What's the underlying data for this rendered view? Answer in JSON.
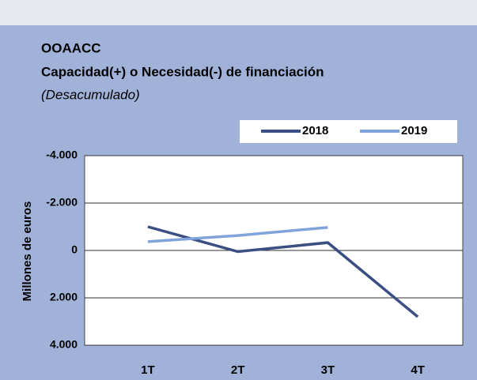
{
  "chart_data": {
    "type": "line",
    "title": "OOAACC",
    "subtitle": "Capacidad(+) o Necesidad(-) de financiación",
    "note": "(Desacumulado)",
    "y_label": "Millones de euros",
    "categories": [
      "1T",
      "2T",
      "3T",
      "4T"
    ],
    "series": [
      {
        "name": "2018",
        "color": "#3c4f83",
        "values": [
          -1000,
          50,
          -330,
          2800
        ]
      },
      {
        "name": "2019",
        "color": "#80a3dc",
        "values": [
          -370,
          -630,
          -970,
          null
        ]
      }
    ],
    "ylim": [
      -4000,
      4000
    ],
    "y_inverted": true,
    "yticks": [
      {
        "value": -4000,
        "label": "-4.000"
      },
      {
        "value": -2000,
        "label": "-2.000"
      },
      0,
      {
        "value": 2000,
        "label": "2.000"
      },
      {
        "value": 4000,
        "label": "4.000"
      }
    ],
    "grid": true,
    "legend": "top-right"
  }
}
